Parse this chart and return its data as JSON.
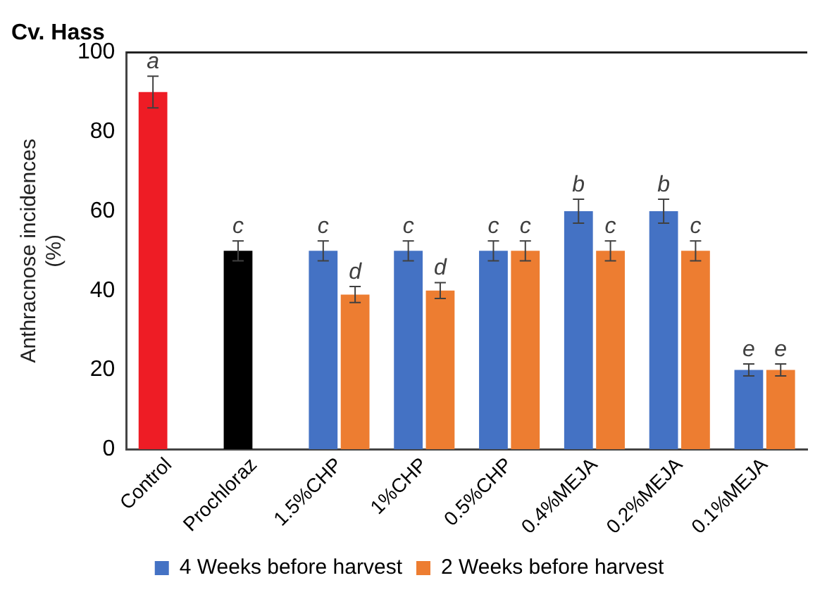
{
  "chart_data": {
    "type": "bar",
    "title": "Cv. Hass",
    "ylabel": "Anthracnose incidences\n(%)",
    "categories": [
      "Control",
      "Prochloraz",
      "1.5%CHP",
      "1%CHP",
      "0.5%CHP",
      "0.4%MEJA",
      "0.2%MEJA",
      "0.1%MEJA"
    ],
    "series": [
      {
        "name": "4 Weeks before harvest",
        "color": "#4472c4",
        "colors": [
          "#ee1c25",
          "#000000",
          "#4472c4",
          "#4472c4",
          "#4472c4",
          "#4472c4",
          "#4472c4",
          "#4472c4"
        ],
        "values": [
          90,
          50,
          50,
          50,
          50,
          60,
          60,
          20
        ],
        "errors": [
          4,
          2.5,
          2.5,
          2.5,
          2.5,
          3,
          3,
          1.5
        ]
      },
      {
        "name": "2 Weeks before harvest",
        "color": "#ed7d31",
        "values": [
          null,
          null,
          39,
          40,
          50,
          50,
          50,
          20
        ],
        "errors": [
          null,
          null,
          2,
          2,
          2.5,
          2.5,
          2.5,
          1.5
        ]
      }
    ],
    "ylim": [
      0,
      100
    ],
    "yticks": [
      0,
      20,
      40,
      60,
      80,
      100
    ],
    "grid": false,
    "legend": "bottom",
    "annotations": [
      {
        "text": "a",
        "x": "Control",
        "y": 90
      },
      {
        "text": "c",
        "x": "Prochloraz",
        "y": 50
      },
      {
        "text": "c",
        "x": "1.5%CHP",
        "y": 50
      },
      {
        "text": "d",
        "x": "1.5%CHP",
        "y": 39
      },
      {
        "text": "c",
        "x": "1%CHP",
        "y": 50
      },
      {
        "text": "d",
        "x": "1%CHP",
        "y": 40
      },
      {
        "text": "c",
        "x": "0.5%CHP",
        "y": 50
      },
      {
        "text": "c",
        "x": "0.5%CHP",
        "y": 50
      },
      {
        "text": "b",
        "x": "0.4%MEJA",
        "y": 60
      },
      {
        "text": "c",
        "x": "0.4%MEJA",
        "y": 50
      },
      {
        "text": "b",
        "x": "0.2%MEJA",
        "y": 60
      },
      {
        "text": "c",
        "x": "0.2%MEJA",
        "y": 50
      },
      {
        "text": "e",
        "x": "0.1%MEJA",
        "y": 20
      },
      {
        "text": "e",
        "x": "0.1%MEJA",
        "y": 20
      }
    ]
  }
}
